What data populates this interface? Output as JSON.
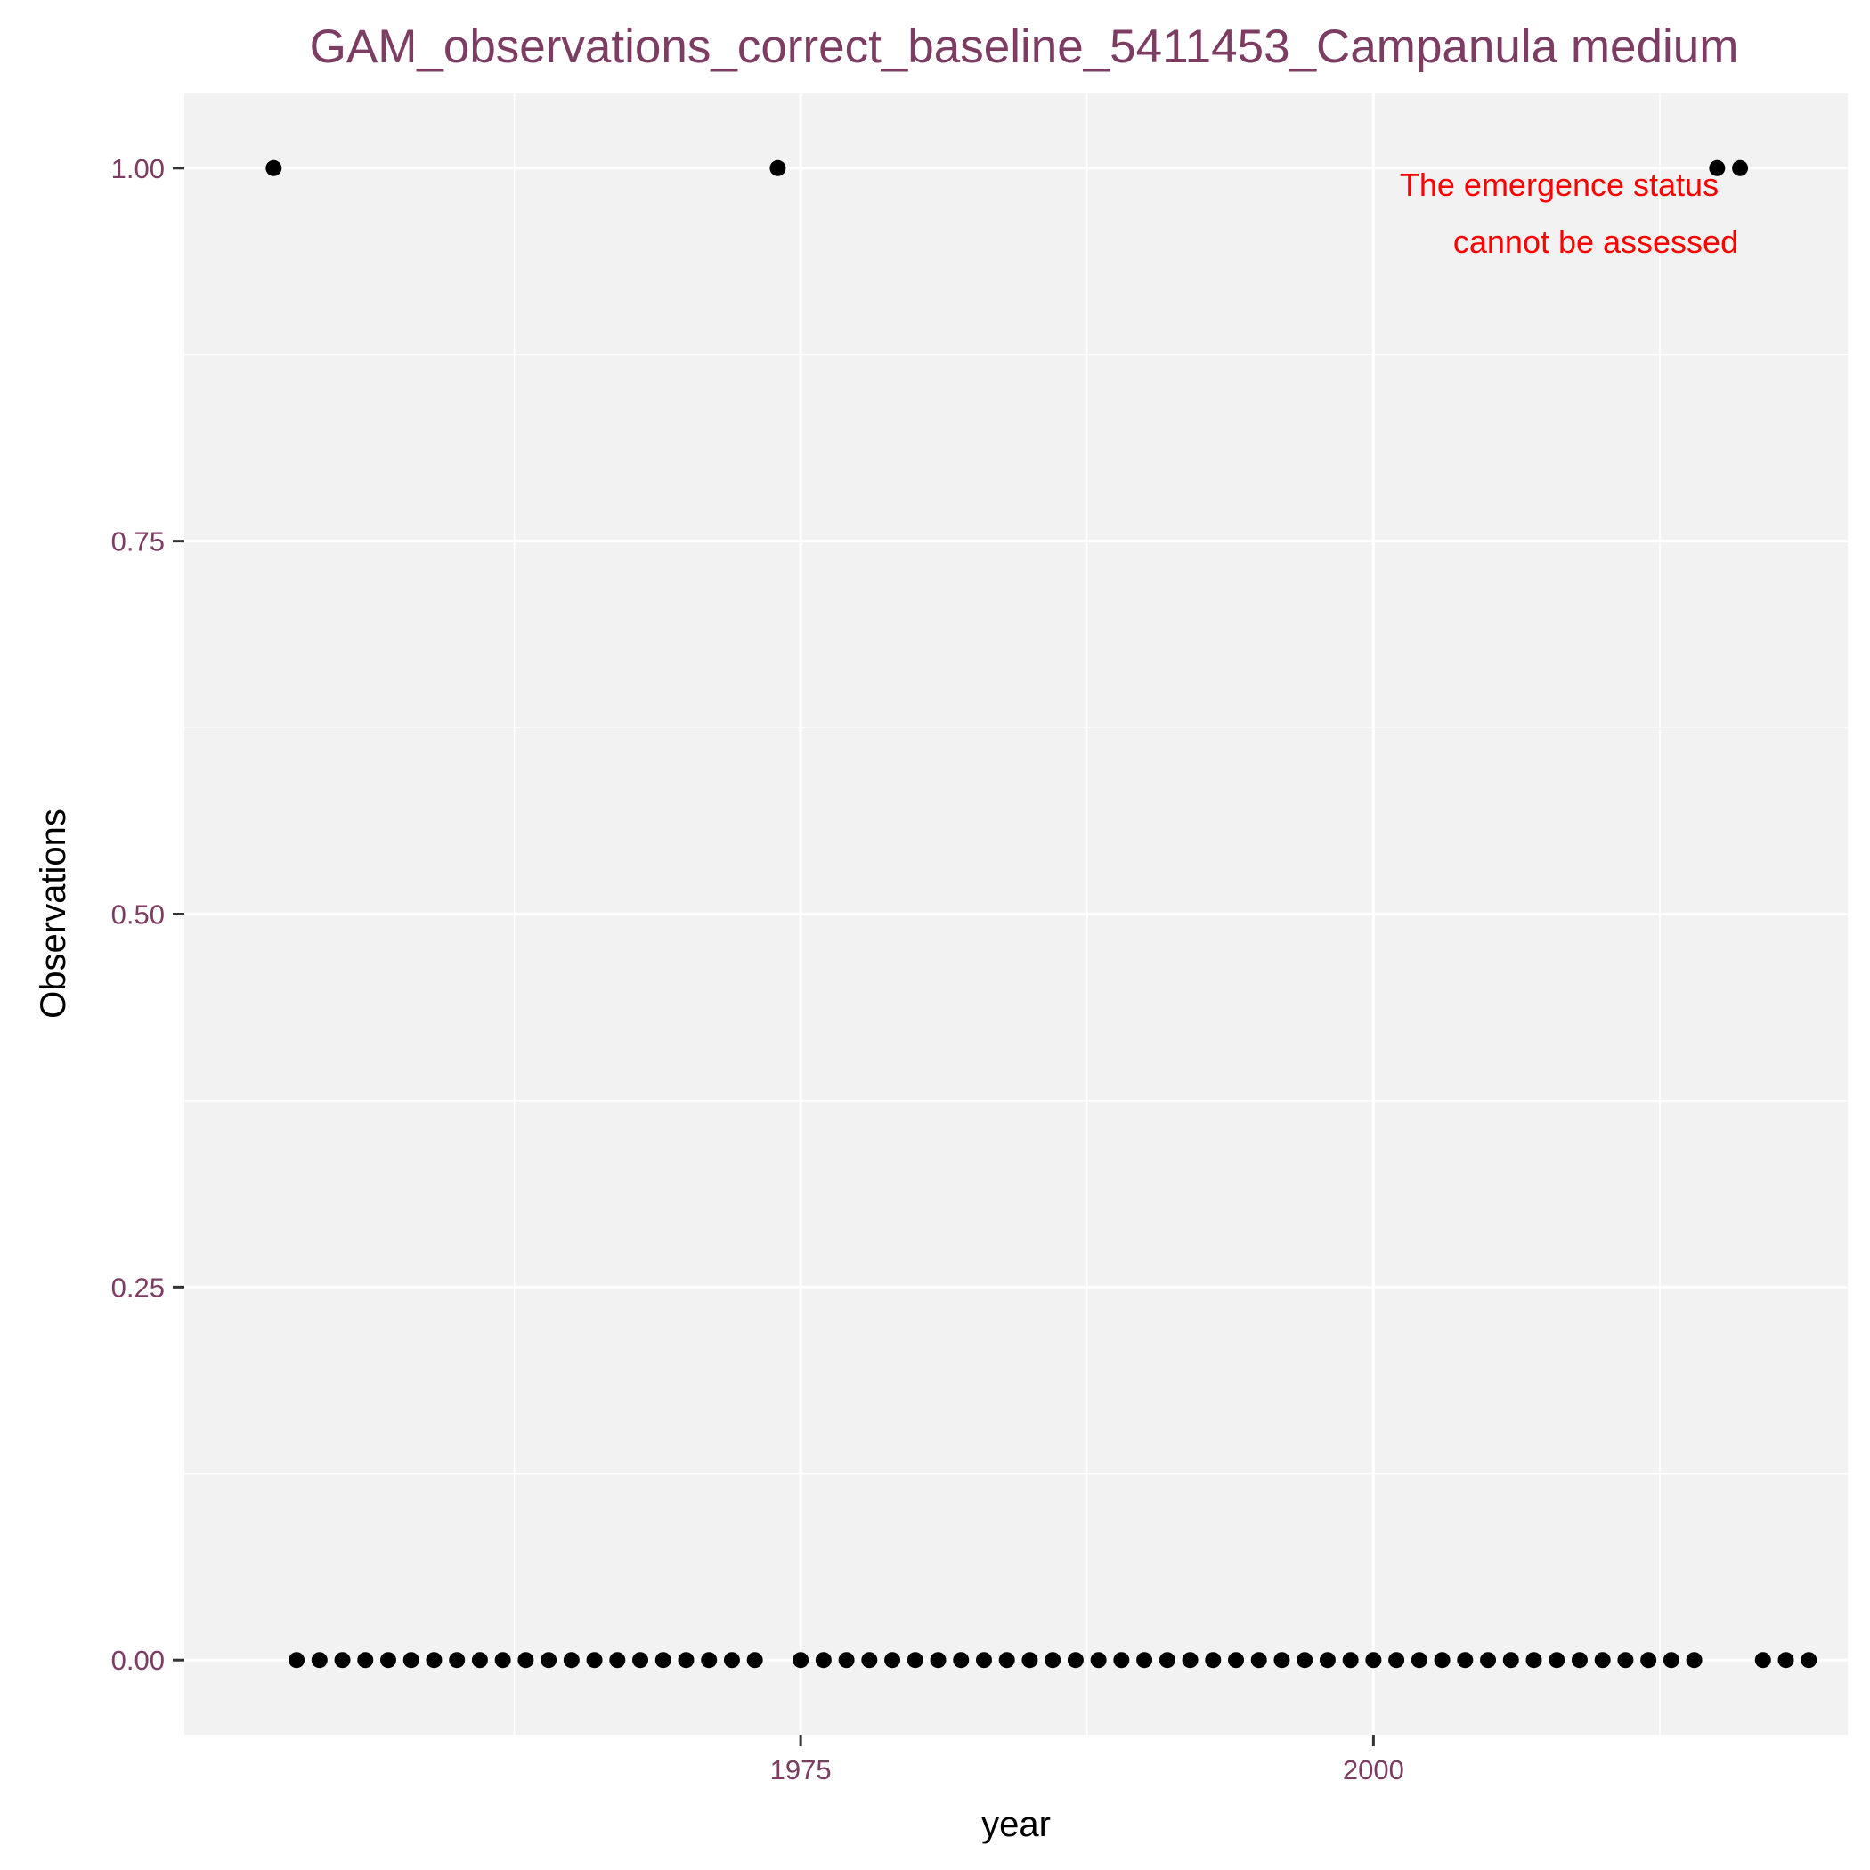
{
  "chart_data": {
    "type": "scatter",
    "title": "GAM_observations_correct_baseline_5411453_Campanula medium",
    "xlabel": "year",
    "ylabel": "Observations",
    "xlim": [
      1948.1,
      2020.7
    ],
    "ylim": [
      -0.05,
      1.05
    ],
    "x_ticks": [
      1975,
      2000
    ],
    "x_tick_labels": [
      "1975",
      "2000"
    ],
    "x_minor_ticks": [
      1962.5,
      1987.5,
      2012.5
    ],
    "y_ticks": [
      0,
      0.25,
      0.5,
      0.75,
      1
    ],
    "y_tick_labels": [
      "0.00",
      "0.25",
      "0.50",
      "0.75",
      "1.00"
    ],
    "grid": true,
    "annotation": [
      "The emergence status",
      "cannot be assessed"
    ],
    "annotation_position": "top-right",
    "colors": {
      "title": "#7d3c62",
      "tick_labels": "#7d3c62",
      "panel": "#f2f2f2",
      "grid": "#ffffff",
      "points": "#000000",
      "annotation": "#ff0000"
    },
    "series": [
      {
        "x": [
          1952,
          1953,
          1954,
          1955,
          1956,
          1957,
          1958,
          1959,
          1960,
          1961,
          1962,
          1963,
          1964,
          1965,
          1966,
          1967,
          1968,
          1969,
          1970,
          1971,
          1972,
          1973,
          1974,
          1975,
          1976,
          1977,
          1978,
          1979,
          1980,
          1981,
          1982,
          1983,
          1984,
          1985,
          1986,
          1987,
          1988,
          1989,
          1990,
          1991,
          1992,
          1993,
          1994,
          1995,
          1996,
          1997,
          1998,
          1999,
          2000,
          2001,
          2002,
          2003,
          2004,
          2005,
          2006,
          2007,
          2008,
          2009,
          2010,
          2011,
          2012,
          2013,
          2014,
          2015,
          2016,
          2017,
          2018,
          2019
        ],
        "y": [
          1,
          0,
          0,
          0,
          0,
          0,
          0,
          0,
          0,
          0,
          0,
          0,
          0,
          0,
          0,
          0,
          0,
          0,
          0,
          0,
          0,
          0,
          1,
          0,
          0,
          0,
          0,
          0,
          0,
          0,
          0,
          0,
          0,
          0,
          0,
          0,
          0,
          0,
          0,
          0,
          0,
          0,
          0,
          0,
          0,
          0,
          0,
          0,
          0,
          0,
          0,
          0,
          0,
          0,
          0,
          0,
          0,
          0,
          0,
          0,
          0,
          0,
          0,
          1,
          1,
          0,
          0,
          0
        ]
      }
    ]
  }
}
